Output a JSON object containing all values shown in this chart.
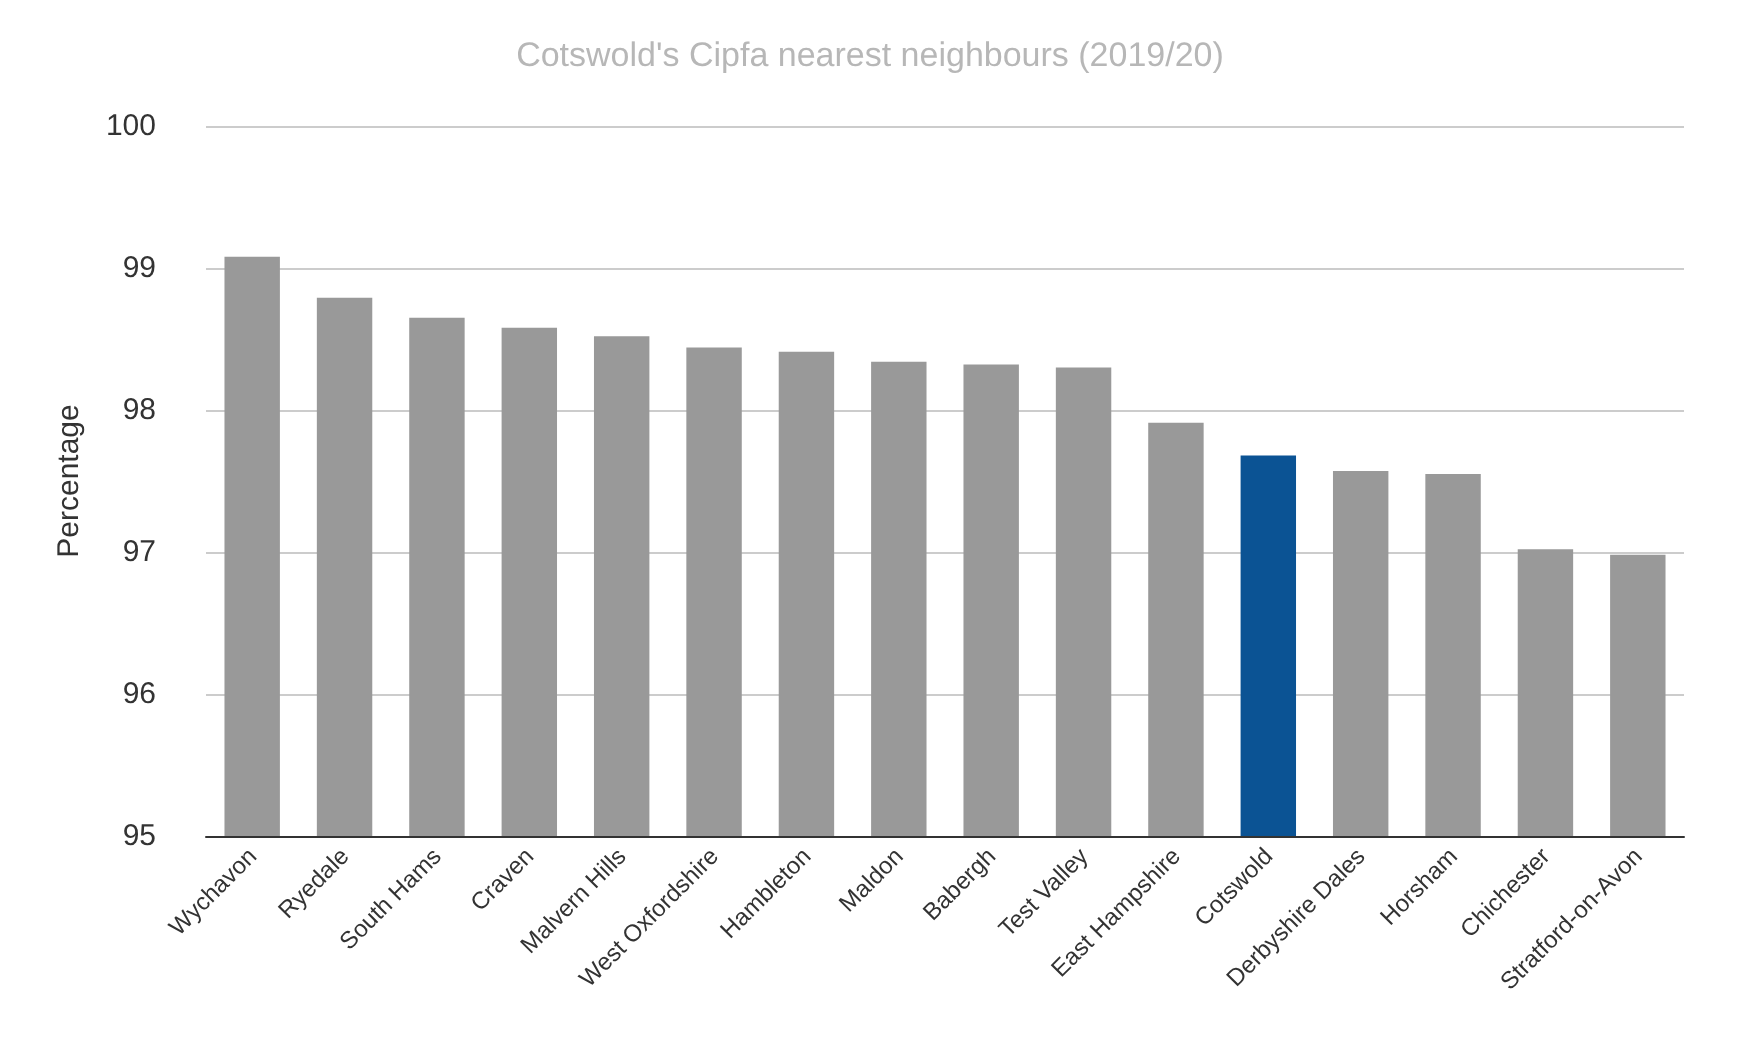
{
  "chart_data": {
    "type": "bar",
    "title": "Cotswold's Cipfa nearest neighbours (2019/20)",
    "ylabel": "Percentage",
    "categories": [
      "Wychavon",
      "Ryedale",
      "South Hams",
      "Craven",
      "Malvern Hills",
      "West Oxfordshire",
      "Hambleton",
      "Maldon",
      "Babergh",
      "Test Valley",
      "East Hampshire",
      "Cotswold",
      "Derbyshire Dales",
      "Horsham",
      "Chichester",
      "Stratford-on-Avon"
    ],
    "values": [
      99.08,
      98.79,
      98.65,
      98.58,
      98.52,
      98.44,
      98.41,
      98.34,
      98.32,
      98.3,
      97.91,
      97.68,
      97.57,
      97.55,
      97.02,
      96.98
    ],
    "colors": [
      "#999999",
      "#999999",
      "#999999",
      "#999999",
      "#999999",
      "#999999",
      "#999999",
      "#999999",
      "#999999",
      "#999999",
      "#999999",
      "#0b5394",
      "#999999",
      "#999999",
      "#999999",
      "#999999"
    ],
    "ylim": [
      95,
      100
    ],
    "yticks": [
      95,
      96,
      97,
      98,
      99,
      100
    ],
    "grid": "y"
  }
}
